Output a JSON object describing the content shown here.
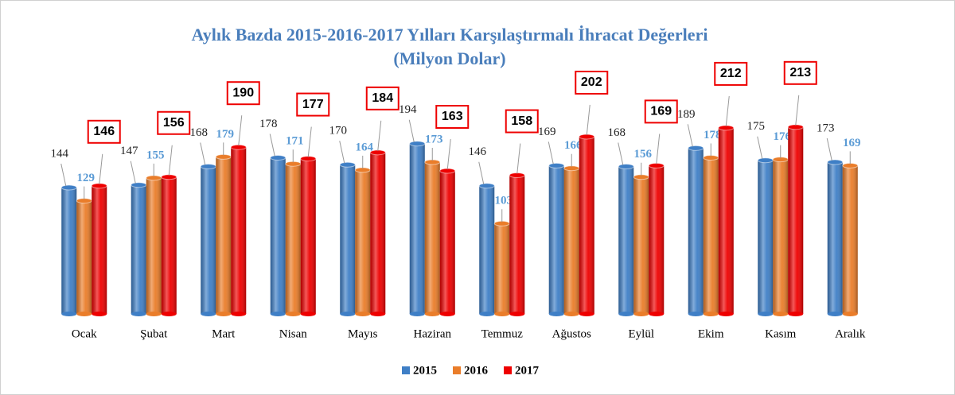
{
  "chart_data": {
    "type": "bar",
    "title": "Aylık Bazda 2015-2016-2017 Yılları Karşılaştırmalı İhracat Değerleri",
    "subtitle": "(Milyon Dolar)",
    "categories": [
      "Ocak",
      "Şubat",
      "Mart",
      "Nisan",
      "Mayıs",
      "Haziran",
      "Temmuz",
      "Ağustos",
      "Eylül",
      "Ekim",
      "Kasım",
      "Aralık"
    ],
    "series": [
      {
        "name": "2015",
        "color": "#3f7fc6",
        "values": [
          144,
          147,
          168,
          178,
          170,
          194,
          146,
          169,
          168,
          189,
          175,
          173
        ]
      },
      {
        "name": "2016",
        "color": "#ea7d2a",
        "values": [
          129,
          155,
          179,
          171,
          164,
          173,
          103,
          166,
          156,
          178,
          176,
          169
        ]
      },
      {
        "name": "2017",
        "color": "#ee0000",
        "values": [
          146,
          156,
          190,
          177,
          184,
          163,
          158,
          202,
          169,
          212,
          213,
          null
        ]
      }
    ],
    "ylim": [
      0,
      240
    ],
    "legend": "bottom"
  }
}
